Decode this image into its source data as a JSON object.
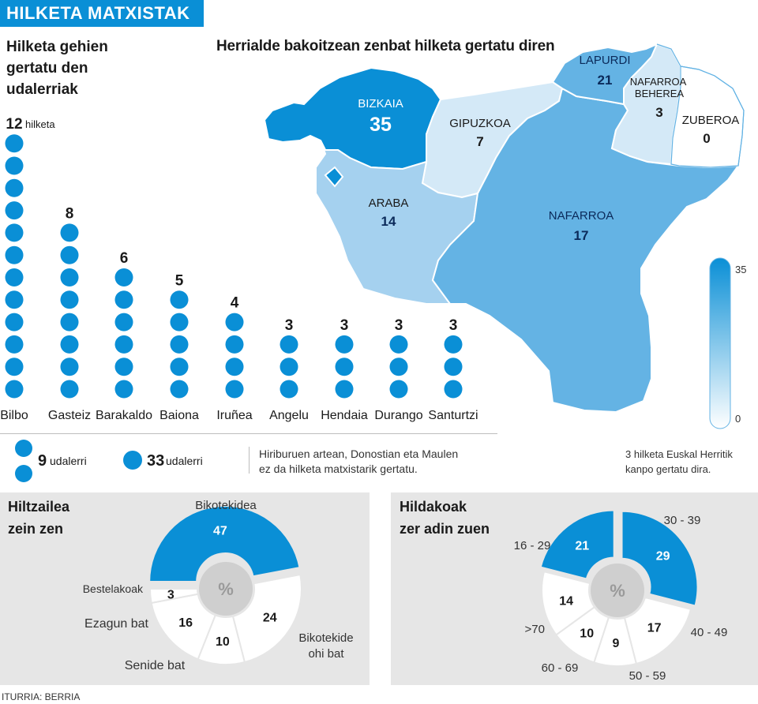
{
  "badge": "HILKETA MATXISTAK",
  "towns_title_lines": [
    "Hilketa gehien",
    "gertatu den",
    "udalerriak"
  ],
  "map_title": "Herrialde bakoitzean zenbat hilketa gertatu diren",
  "towns_unit": "hilketa",
  "legend": {
    "small_value": "9",
    "small_label": "udalerri",
    "big_value": "33",
    "big_label": "udalerri"
  },
  "note_center": [
    "Hiriburuen artean, Donostian eta Maulen",
    "ez da hilketa matxistarik gertatu."
  ],
  "note_right": [
    "3 hilketa Euskal Herritik",
    "kanpo gertatu dira."
  ],
  "source": "ITURRIA: BERRIA",
  "colors": {
    "accent": "#0a8fd6",
    "mid": "#64b3e4",
    "light": "#a5d1ef",
    "pale": "#d4e9f7",
    "panel": "#e6e6e6"
  },
  "chart_data": [
    {
      "type": "bar",
      "title": "Hilketa gehien gertatu den udalerriak",
      "categories": [
        "Bilbo",
        "Gasteiz",
        "Barakaldo",
        "Baiona",
        "Iruñea",
        "Angelu",
        "Hendaia",
        "Durango",
        "Santurtzi"
      ],
      "values": [
        12,
        8,
        6,
        5,
        4,
        3,
        3,
        3,
        3
      ],
      "unit": "hilketa"
    },
    {
      "type": "heatmap",
      "title": "Herrialde bakoitzean zenbat hilketa gertatu diren",
      "regions": [
        {
          "name": "BIZKAIA",
          "value": 35
        },
        {
          "name": "GIPUZKOA",
          "value": 7
        },
        {
          "name": "ARABA",
          "value": 14
        },
        {
          "name": "NAFARROA",
          "value": 17
        },
        {
          "name": "LAPURDI",
          "value": 21
        },
        {
          "name": "NAFARROA BEHEREA",
          "value": 3
        },
        {
          "name": "ZUBEROA",
          "value": 0
        }
      ],
      "scale": {
        "min": 0,
        "max": 35,
        "min_label": "0",
        "max_label": "35"
      }
    },
    {
      "type": "pie",
      "title_lines": [
        "Hiltzailea",
        "zein zen"
      ],
      "center_label": "%",
      "slices": [
        {
          "label": "Bikotekidea",
          "value": 47
        },
        {
          "label": "Bikotekide ohi bat",
          "value": 24
        },
        {
          "label": "Senide bat",
          "value": 10
        },
        {
          "label": "Ezagun bat",
          "value": 16
        },
        {
          "label": "Bestelakoak",
          "value": 3
        }
      ]
    },
    {
      "type": "pie",
      "title_lines": [
        "Hildakoak",
        "zer adin zuen"
      ],
      "center_label": "%",
      "slices": [
        {
          "label": "30 - 39",
          "value": 29
        },
        {
          "label": "40 - 49",
          "value": 17
        },
        {
          "label": "50 - 59",
          "value": 9
        },
        {
          "label": "60 - 69",
          "value": 10
        },
        {
          "label": ">70",
          "value": 14
        },
        {
          "label": "16 - 29",
          "value": 21
        }
      ]
    }
  ]
}
